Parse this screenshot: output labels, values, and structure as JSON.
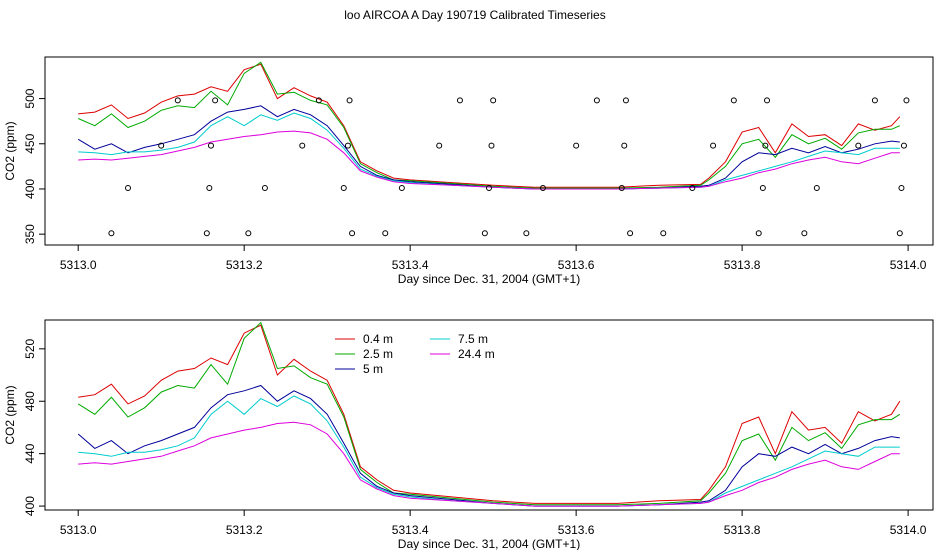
{
  "title": "loo AIRCOA A  Day 190719  Calibrated Timeseries",
  "chart_data": [
    {
      "type": "line",
      "xlabel": "Day since Dec. 31, 2004 (GMT+1)",
      "ylabel": "CO2 (ppm)",
      "xlim": [
        5312.96,
        5314.03
      ],
      "ylim": [
        338,
        546
      ],
      "xticks": [
        "5313.0",
        "5313.2",
        "5313.4",
        "5313.6",
        "5313.8",
        "5314.0"
      ],
      "yticks": [
        "350",
        "400",
        "450",
        "500"
      ],
      "series": [
        {
          "color": "#dd0000",
          "x": [
            5313.0,
            5313.02,
            5313.04,
            5313.06,
            5313.08,
            5313.1,
            5313.12,
            5313.14,
            5313.16,
            5313.18,
            5313.2,
            5313.22,
            5313.24,
            5313.26,
            5313.28,
            5313.3,
            5313.32,
            5313.34,
            5313.36,
            5313.38,
            5313.4,
            5313.45,
            5313.5,
            5313.55,
            5313.6,
            5313.65,
            5313.7,
            5313.75,
            5313.76,
            5313.78,
            5313.8,
            5313.82,
            5313.84,
            5313.86,
            5313.88,
            5313.9,
            5313.92,
            5313.94,
            5313.96,
            5313.98,
            5313.99
          ],
          "y": [
            483,
            485,
            493,
            478,
            484,
            496,
            503,
            505,
            513,
            508,
            532,
            538,
            500,
            512,
            503,
            496,
            470,
            430,
            420,
            412,
            410,
            407,
            404,
            402,
            402,
            402,
            404,
            405,
            412,
            430,
            463,
            468,
            440,
            472,
            458,
            460,
            448,
            472,
            465,
            470,
            480
          ]
        },
        {
          "color": "#00aa00",
          "x": [
            5313.0,
            5313.02,
            5313.04,
            5313.06,
            5313.08,
            5313.1,
            5313.12,
            5313.14,
            5313.16,
            5313.18,
            5313.2,
            5313.22,
            5313.24,
            5313.26,
            5313.28,
            5313.3,
            5313.32,
            5313.34,
            5313.36,
            5313.38,
            5313.4,
            5313.45,
            5313.5,
            5313.55,
            5313.6,
            5313.65,
            5313.7,
            5313.75,
            5313.76,
            5313.78,
            5313.8,
            5313.82,
            5313.84,
            5313.86,
            5313.88,
            5313.9,
            5313.92,
            5313.94,
            5313.96,
            5313.98,
            5313.99
          ],
          "y": [
            478,
            470,
            483,
            468,
            475,
            487,
            492,
            490,
            508,
            493,
            528,
            540,
            505,
            507,
            498,
            493,
            468,
            428,
            418,
            410,
            409,
            406,
            403,
            401,
            401,
            401,
            402,
            404,
            410,
            425,
            450,
            455,
            435,
            460,
            450,
            456,
            444,
            462,
            466,
            466,
            470
          ]
        },
        {
          "color": "#000099",
          "x": [
            5313.0,
            5313.02,
            5313.04,
            5313.06,
            5313.08,
            5313.1,
            5313.12,
            5313.14,
            5313.16,
            5313.18,
            5313.2,
            5313.22,
            5313.24,
            5313.26,
            5313.28,
            5313.3,
            5313.32,
            5313.34,
            5313.36,
            5313.38,
            5313.4,
            5313.45,
            5313.5,
            5313.55,
            5313.6,
            5313.65,
            5313.7,
            5313.75,
            5313.76,
            5313.78,
            5313.8,
            5313.82,
            5313.84,
            5313.86,
            5313.88,
            5313.9,
            5313.92,
            5313.94,
            5313.96,
            5313.98,
            5313.99
          ],
          "y": [
            455,
            444,
            450,
            440,
            446,
            450,
            455,
            460,
            475,
            485,
            488,
            492,
            480,
            488,
            482,
            470,
            448,
            425,
            415,
            410,
            408,
            405,
            402,
            400,
            400,
            400,
            401,
            403,
            404,
            412,
            430,
            440,
            438,
            445,
            440,
            447,
            440,
            444,
            450,
            453,
            452
          ]
        },
        {
          "color": "#00cccc",
          "x": [
            5313.0,
            5313.02,
            5313.04,
            5313.06,
            5313.08,
            5313.1,
            5313.12,
            5313.14,
            5313.16,
            5313.18,
            5313.2,
            5313.22,
            5313.24,
            5313.26,
            5313.28,
            5313.3,
            5313.32,
            5313.34,
            5313.36,
            5313.38,
            5313.4,
            5313.45,
            5313.5,
            5313.55,
            5313.6,
            5313.65,
            5313.7,
            5313.75,
            5313.76,
            5313.78,
            5313.8,
            5313.82,
            5313.84,
            5313.86,
            5313.88,
            5313.9,
            5313.92,
            5313.94,
            5313.96,
            5313.98,
            5313.99
          ],
          "y": [
            441,
            440,
            438,
            441,
            441,
            443,
            446,
            452,
            470,
            480,
            470,
            482,
            476,
            484,
            478,
            465,
            445,
            422,
            414,
            409,
            407,
            404,
            402,
            400,
            400,
            400,
            401,
            402,
            403,
            410,
            415,
            420,
            425,
            430,
            436,
            442,
            440,
            438,
            445,
            445,
            445
          ]
        },
        {
          "color": "#dd00dd",
          "x": [
            5313.0,
            5313.02,
            5313.04,
            5313.06,
            5313.08,
            5313.1,
            5313.12,
            5313.14,
            5313.16,
            5313.18,
            5313.2,
            5313.22,
            5313.24,
            5313.26,
            5313.28,
            5313.3,
            5313.32,
            5313.34,
            5313.36,
            5313.38,
            5313.4,
            5313.45,
            5313.5,
            5313.55,
            5313.6,
            5313.65,
            5313.7,
            5313.75,
            5313.76,
            5313.78,
            5313.8,
            5313.82,
            5313.84,
            5313.86,
            5313.88,
            5313.9,
            5313.92,
            5313.94,
            5313.96,
            5313.98,
            5313.99
          ],
          "y": [
            432,
            433,
            432,
            434,
            436,
            438,
            442,
            446,
            452,
            455,
            458,
            460,
            463,
            464,
            462,
            455,
            440,
            420,
            413,
            408,
            406,
            404,
            402,
            400,
            400,
            400,
            401,
            402,
            403,
            408,
            412,
            418,
            422,
            428,
            432,
            435,
            430,
            428,
            434,
            440,
            440
          ]
        }
      ],
      "markers": {
        "x": [
          5313.04,
          5313.06,
          5313.1,
          5313.12,
          5313.155,
          5313.158,
          5313.16,
          5313.165,
          5313.205,
          5313.225,
          5313.27,
          5313.29,
          5313.32,
          5313.325,
          5313.327,
          5313.33,
          5313.37,
          5313.39,
          5313.435,
          5313.46,
          5313.49,
          5313.495,
          5313.498,
          5313.5,
          5313.54,
          5313.56,
          5313.6,
          5313.625,
          5313.655,
          5313.658,
          5313.66,
          5313.665,
          5313.705,
          5313.74,
          5313.765,
          5313.79,
          5313.82,
          5313.825,
          5313.828,
          5313.83,
          5313.875,
          5313.89,
          5313.94,
          5313.96,
          5313.99,
          5313.992,
          5313.995,
          5313.998
        ],
        "y": [
          351,
          401,
          448,
          498,
          351,
          401,
          448,
          498,
          351,
          401,
          448,
          498,
          401,
          448,
          498,
          351,
          351,
          401,
          448,
          498,
          351,
          401,
          448,
          498,
          351,
          401,
          448,
          498,
          401,
          448,
          498,
          351,
          351,
          401,
          448,
          498,
          351,
          401,
          448,
          498,
          351,
          401,
          448,
          498,
          351,
          401,
          448,
          498
        ]
      }
    },
    {
      "type": "line",
      "xlabel": "Day since Dec. 31, 2004 (GMT+1)",
      "ylabel": "CO2 (ppm)",
      "xlim": [
        5312.96,
        5314.03
      ],
      "ylim": [
        397,
        542
      ],
      "xticks": [
        "5313.0",
        "5313.2",
        "5313.4",
        "5313.6",
        "5313.8",
        "5314.0"
      ],
      "yticks": [
        "400",
        "440",
        "480",
        "520"
      ],
      "legend": [
        "0.4 m",
        "2.5 m",
        "5 m",
        "7.5 m",
        "24.4 m"
      ],
      "series": [
        {
          "name": "0.4 m",
          "color": "#dd0000",
          "x": [
            5313.0,
            5313.02,
            5313.04,
            5313.06,
            5313.08,
            5313.1,
            5313.12,
            5313.14,
            5313.16,
            5313.18,
            5313.2,
            5313.22,
            5313.24,
            5313.26,
            5313.28,
            5313.3,
            5313.32,
            5313.34,
            5313.36,
            5313.38,
            5313.4,
            5313.45,
            5313.5,
            5313.55,
            5313.6,
            5313.65,
            5313.7,
            5313.75,
            5313.76,
            5313.78,
            5313.8,
            5313.82,
            5313.84,
            5313.86,
            5313.88,
            5313.9,
            5313.92,
            5313.94,
            5313.96,
            5313.98,
            5313.99
          ],
          "y": [
            483,
            485,
            493,
            478,
            484,
            496,
            503,
            505,
            513,
            508,
            532,
            538,
            500,
            512,
            503,
            496,
            470,
            430,
            420,
            412,
            410,
            407,
            404,
            402,
            402,
            402,
            404,
            405,
            412,
            430,
            463,
            468,
            440,
            472,
            458,
            460,
            448,
            472,
            465,
            470,
            480
          ]
        },
        {
          "name": "2.5 m",
          "color": "#00aa00",
          "x": [
            5313.0,
            5313.02,
            5313.04,
            5313.06,
            5313.08,
            5313.1,
            5313.12,
            5313.14,
            5313.16,
            5313.18,
            5313.2,
            5313.22,
            5313.24,
            5313.26,
            5313.28,
            5313.3,
            5313.32,
            5313.34,
            5313.36,
            5313.38,
            5313.4,
            5313.45,
            5313.5,
            5313.55,
            5313.6,
            5313.65,
            5313.7,
            5313.75,
            5313.76,
            5313.78,
            5313.8,
            5313.82,
            5313.84,
            5313.86,
            5313.88,
            5313.9,
            5313.92,
            5313.94,
            5313.96,
            5313.98,
            5313.99
          ],
          "y": [
            478,
            470,
            483,
            468,
            475,
            487,
            492,
            490,
            508,
            493,
            528,
            540,
            505,
            507,
            498,
            493,
            468,
            428,
            418,
            410,
            409,
            406,
            403,
            401,
            401,
            401,
            402,
            404,
            410,
            425,
            450,
            455,
            435,
            460,
            450,
            456,
            444,
            462,
            466,
            466,
            470
          ]
        },
        {
          "name": "5 m",
          "color": "#000099",
          "x": [
            5313.0,
            5313.02,
            5313.04,
            5313.06,
            5313.08,
            5313.1,
            5313.12,
            5313.14,
            5313.16,
            5313.18,
            5313.2,
            5313.22,
            5313.24,
            5313.26,
            5313.28,
            5313.3,
            5313.32,
            5313.34,
            5313.36,
            5313.38,
            5313.4,
            5313.45,
            5313.5,
            5313.55,
            5313.6,
            5313.65,
            5313.7,
            5313.75,
            5313.76,
            5313.78,
            5313.8,
            5313.82,
            5313.84,
            5313.86,
            5313.88,
            5313.9,
            5313.92,
            5313.94,
            5313.96,
            5313.98,
            5313.99
          ],
          "y": [
            455,
            444,
            450,
            440,
            446,
            450,
            455,
            460,
            475,
            485,
            488,
            492,
            480,
            488,
            482,
            470,
            448,
            425,
            415,
            410,
            408,
            405,
            402,
            400,
            400,
            400,
            401,
            403,
            404,
            412,
            430,
            440,
            438,
            445,
            440,
            447,
            440,
            444,
            450,
            453,
            452
          ]
        },
        {
          "name": "7.5 m",
          "color": "#00cccc",
          "x": [
            5313.0,
            5313.02,
            5313.04,
            5313.06,
            5313.08,
            5313.1,
            5313.12,
            5313.14,
            5313.16,
            5313.18,
            5313.2,
            5313.22,
            5313.24,
            5313.26,
            5313.28,
            5313.3,
            5313.32,
            5313.34,
            5313.36,
            5313.38,
            5313.4,
            5313.45,
            5313.5,
            5313.55,
            5313.6,
            5313.65,
            5313.7,
            5313.75,
            5313.76,
            5313.78,
            5313.8,
            5313.82,
            5313.84,
            5313.86,
            5313.88,
            5313.9,
            5313.92,
            5313.94,
            5313.96,
            5313.98,
            5313.99
          ],
          "y": [
            441,
            440,
            438,
            441,
            441,
            443,
            446,
            452,
            470,
            480,
            470,
            482,
            476,
            484,
            478,
            465,
            445,
            422,
            414,
            409,
            407,
            404,
            402,
            400,
            400,
            400,
            401,
            402,
            403,
            410,
            415,
            420,
            425,
            430,
            436,
            442,
            440,
            438,
            445,
            445,
            445
          ]
        },
        {
          "name": "24.4 m",
          "color": "#dd00dd",
          "x": [
            5313.0,
            5313.02,
            5313.04,
            5313.06,
            5313.08,
            5313.1,
            5313.12,
            5313.14,
            5313.16,
            5313.18,
            5313.2,
            5313.22,
            5313.24,
            5313.26,
            5313.28,
            5313.3,
            5313.32,
            5313.34,
            5313.36,
            5313.38,
            5313.4,
            5313.45,
            5313.5,
            5313.55,
            5313.6,
            5313.65,
            5313.7,
            5313.75,
            5313.76,
            5313.78,
            5313.8,
            5313.82,
            5313.84,
            5313.86,
            5313.88,
            5313.9,
            5313.92,
            5313.94,
            5313.96,
            5313.98,
            5313.99
          ],
          "y": [
            432,
            433,
            432,
            434,
            436,
            438,
            442,
            446,
            452,
            455,
            458,
            460,
            463,
            464,
            462,
            455,
            440,
            420,
            413,
            408,
            406,
            404,
            402,
            400,
            400,
            400,
            401,
            402,
            403,
            408,
            412,
            418,
            422,
            428,
            432,
            435,
            430,
            428,
            434,
            440,
            440
          ]
        }
      ]
    }
  ]
}
